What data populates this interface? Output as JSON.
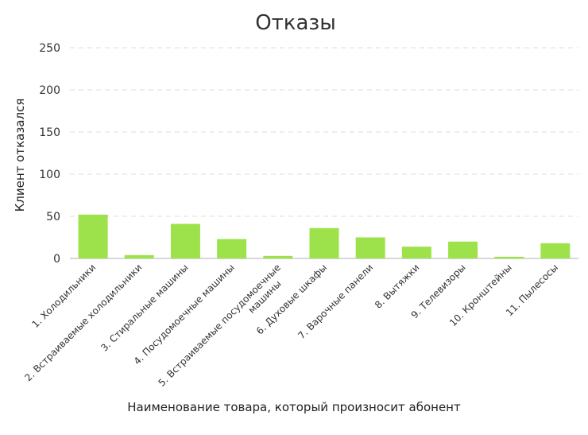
{
  "chart_data": {
    "type": "bar",
    "title": "Отказы",
    "xlabel": "Наименование товара, который произносит абонент",
    "ylabel": "Клиент отказался",
    "ylim": [
      0,
      250
    ],
    "yticks": [
      0,
      50,
      100,
      150,
      200,
      250
    ],
    "grid": true,
    "categories": [
      [
        "1. Холодильники"
      ],
      [
        "2. Встраиваемые холодильники"
      ],
      [
        "3. Стиральные машины"
      ],
      [
        "4. Посудомоечные машины"
      ],
      [
        "5. Встраиваемые посудомоечные",
        "машины"
      ],
      [
        "6. Духовые шкафы"
      ],
      [
        "7. Варочные панели"
      ],
      [
        "8. Вытяжки"
      ],
      [
        "9. Телевизоры"
      ],
      [
        "10. Кронштейны"
      ],
      [
        "11. Пылесосы"
      ]
    ],
    "values": [
      52,
      4,
      41,
      23,
      3,
      36,
      25,
      14,
      20,
      2,
      18
    ],
    "bar_color": "#9de24a"
  }
}
